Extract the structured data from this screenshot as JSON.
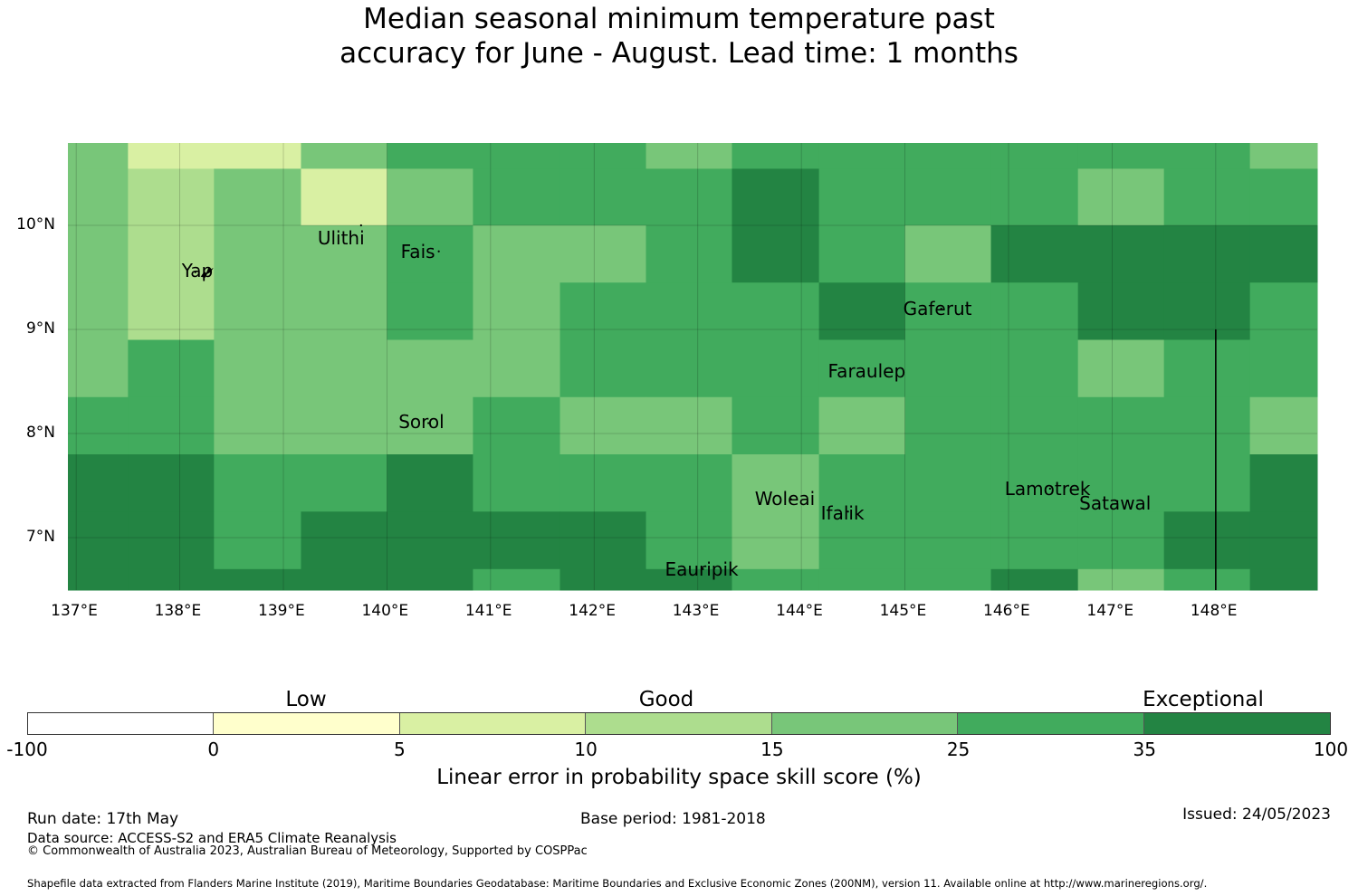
{
  "title": {
    "line1": "Median seasonal minimum temperature past",
    "line2": "accuracy for June - August. Lead time: 1 months"
  },
  "map": {
    "lon_range": [
      137,
      149
    ],
    "lat_range": [
      6.5,
      10.8
    ],
    "lon_ticks": [
      "137°E",
      "138°E",
      "139°E",
      "140°E",
      "141°E",
      "142°E",
      "143°E",
      "144°E",
      "145°E",
      "146°E",
      "147°E",
      "148°E"
    ],
    "lat_ticks": [
      "10°N",
      "9°N",
      "8°N",
      "7°N"
    ],
    "grid": true,
    "islands": [
      {
        "name": "Yap",
        "lon": 138.15,
        "lat": 9.55
      },
      {
        "name": "Ulithi",
        "lon": 139.75,
        "lat": 10.0
      },
      {
        "name": "Fais",
        "lon": 140.5,
        "lat": 9.75
      },
      {
        "name": "Gaferut",
        "lon": 145.35,
        "lat": 9.2
      },
      {
        "name": "Faraulep",
        "lon": 144.65,
        "lat": 8.6
      },
      {
        "name": "Sorol",
        "lon": 140.4,
        "lat": 8.1
      },
      {
        "name": "Woleai",
        "lon": 143.9,
        "lat": 7.37
      },
      {
        "name": "Ifalik",
        "lon": 144.45,
        "lat": 7.25
      },
      {
        "name": "Lamotrek",
        "lon": 146.4,
        "lat": 7.47
      },
      {
        "name": "Satawal",
        "lon": 147.05,
        "lat": 7.35
      },
      {
        "name": "Eauripik",
        "lon": 143.05,
        "lat": 6.7
      }
    ],
    "boundary_line": {
      "lon": 148.0,
      "lat_from": 6.5,
      "lat_to": 9.0
    },
    "legend_category_colors": [
      "#ffffff",
      "#ffffcc",
      "#d9f0a3",
      "#addd8e",
      "#78c679",
      "#41ab5d",
      "#238443"
    ]
  },
  "chart_data": {
    "type": "heatmap",
    "columns_lon_edges": [
      136.92,
      137.5,
      138.33,
      139.17,
      140.0,
      140.83,
      141.67,
      142.5,
      143.33,
      144.17,
      145.0,
      145.83,
      146.67,
      147.5,
      148.33,
      149.0
    ],
    "rows_lat_edges": [
      10.8,
      10.55,
      10.0,
      9.45,
      8.9,
      8.35,
      7.8,
      7.25,
      6.7,
      6.5
    ],
    "category_index_grid": [
      [
        4,
        2,
        2,
        4,
        5,
        5,
        5,
        4,
        5,
        5,
        5,
        5,
        5,
        5,
        4
      ],
      [
        4,
        3,
        4,
        2,
        4,
        5,
        5,
        5,
        6,
        5,
        5,
        5,
        4,
        5,
        5
      ],
      [
        4,
        3,
        4,
        4,
        5,
        4,
        4,
        5,
        6,
        5,
        4,
        6,
        6,
        6,
        6
      ],
      [
        4,
        3,
        4,
        4,
        5,
        4,
        5,
        5,
        5,
        6,
        5,
        5,
        6,
        6,
        5
      ],
      [
        4,
        5,
        4,
        4,
        4,
        4,
        5,
        5,
        5,
        5,
        5,
        5,
        4,
        5,
        5
      ],
      [
        5,
        5,
        4,
        4,
        4,
        5,
        4,
        4,
        5,
        4,
        5,
        5,
        5,
        5,
        4
      ],
      [
        6,
        6,
        5,
        5,
        6,
        5,
        5,
        5,
        4,
        5,
        5,
        5,
        5,
        5,
        6
      ],
      [
        6,
        6,
        5,
        6,
        6,
        6,
        6,
        5,
        4,
        5,
        5,
        5,
        5,
        6,
        6
      ],
      [
        6,
        6,
        6,
        6,
        6,
        5,
        6,
        6,
        5,
        5,
        5,
        6,
        4,
        5,
        6
      ]
    ],
    "legend": {
      "bounds": [
        "-100",
        "0",
        "5",
        "10",
        "15",
        "25",
        "35",
        "100"
      ],
      "categories": [
        "Low",
        "Good",
        "Exceptional"
      ],
      "label": "Linear error in probability space skill score (%)"
    }
  },
  "footer": {
    "run_date": "Run date: 17th May",
    "data_source": "Data source: ACCESS-S2 and ERA5 Climate Reanalysis",
    "copyright": "© Commonwealth of Australia 2023, Australian Bureau of Meteorology, Supported by COSPPac",
    "base_period": "Base period: 1981-2018",
    "issued": "Issued: 24/05/2023",
    "shapefile": "Shapefile data extracted from Flanders Marine Institute (2019), Maritime Boundaries Geodatabase: Maritime Boundaries and Exclusive Economic Zones (200NM), version 11. Available online at http://www.marineregions.org/."
  }
}
